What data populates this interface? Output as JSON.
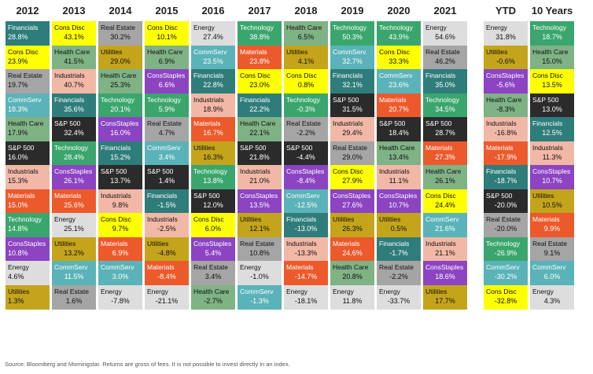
{
  "chart_data": {
    "type": "table",
    "columns": [
      "2012",
      "2013",
      "2014",
      "2015",
      "2016",
      "2017",
      "2018",
      "2019",
      "2020",
      "2021",
      "YTD",
      "10 Years"
    ],
    "sector_colors": {
      "Financials": "#2e7d7b",
      "Cons Disc": "#ffff00",
      "Real Estate": "#a5a5a5",
      "CommServ": "#5ab3b8",
      "Health Care": "#7fb285",
      "S&P 500": "#2b2b2b",
      "Industrials": "#f2b8a7",
      "Materials": "#ec5a2c",
      "Technology": "#3aa66d",
      "ConsStaples": "#8c44c2",
      "Energy": "#dddddd",
      "Utilities": "#c4a41a"
    },
    "rows": [
      [
        [
          "Financials",
          "28.8%"
        ],
        [
          "Cons Disc",
          "43.1%"
        ],
        [
          "Real Estate",
          "30.2%"
        ],
        [
          "Cons Disc",
          "10.1%"
        ],
        [
          "Energy",
          "27.4%"
        ],
        [
          "Technology",
          "38.8%"
        ],
        [
          "Health Care",
          "6.5%"
        ],
        [
          "Technology",
          "50.3%"
        ],
        [
          "Technology",
          "43.9%"
        ],
        [
          "Energy",
          "54.6%"
        ],
        [
          "Energy",
          "31.8%"
        ],
        [
          "Technology",
          "18.7%"
        ]
      ],
      [
        [
          "Cons Disc",
          "23.9%"
        ],
        [
          "Health Care",
          "41.5%"
        ],
        [
          "Utilities",
          "29.0%"
        ],
        [
          "Health Care",
          "6.9%"
        ],
        [
          "CommServ",
          "23.5%"
        ],
        [
          "Materials",
          "23.8%"
        ],
        [
          "Utilities",
          "4.1%"
        ],
        [
          "CommServ",
          "32.7%"
        ],
        [
          "Cons Disc",
          "33.3%"
        ],
        [
          "Real Estate",
          "46.2%"
        ],
        [
          "Utilities",
          "-0.6%"
        ],
        [
          "Health Care",
          "15.0%"
        ]
      ],
      [
        [
          "Real Estate",
          "19.7%"
        ],
        [
          "Industrials",
          "40.7%"
        ],
        [
          "Health Care",
          "25.3%"
        ],
        [
          "ConsStaples",
          "6.6%"
        ],
        [
          "Financials",
          "22.8%"
        ],
        [
          "Cons Disc",
          "23.0%"
        ],
        [
          "Cons Disc",
          "0.8%"
        ],
        [
          "Financials",
          "32.1%"
        ],
        [
          "CommServ",
          "23.6%"
        ],
        [
          "Financials",
          "35.0%"
        ],
        [
          "ConsStaples",
          "-5.6%"
        ],
        [
          "Cons Disc",
          "13.5%"
        ]
      ],
      [
        [
          "CommServ",
          "18.3%"
        ],
        [
          "Financials",
          "35.6%"
        ],
        [
          "Technology",
          "20.1%"
        ],
        [
          "Technology",
          "5.9%"
        ],
        [
          "Industrials",
          "18.9%"
        ],
        [
          "Financials",
          "22.2%"
        ],
        [
          "Technology",
          "-0.3%"
        ],
        [
          "S&P 500",
          "31.5%"
        ],
        [
          "Materials",
          "20.7%"
        ],
        [
          "Technology",
          "34.5%"
        ],
        [
          "Health Care",
          "-8.3%"
        ],
        [
          "S&P 500",
          "13.0%"
        ]
      ],
      [
        [
          "Health Care",
          "17.9%"
        ],
        [
          "S&P 500",
          "32.4%"
        ],
        [
          "ConsStaples",
          "16.0%"
        ],
        [
          "Real Estate",
          "4.7%"
        ],
        [
          "Materials",
          "16.7%"
        ],
        [
          "Health Care",
          "22.1%"
        ],
        [
          "Real Estate",
          "-2.2%"
        ],
        [
          "Industrials",
          "29.4%"
        ],
        [
          "S&P 500",
          "18.4%"
        ],
        [
          "S&P 500",
          "28.7%"
        ],
        [
          "Industrials",
          "-16.8%"
        ],
        [
          "Financials",
          "12.5%"
        ]
      ],
      [
        [
          "S&P 500",
          "16.0%"
        ],
        [
          "Technology",
          "28.4%"
        ],
        [
          "Financials",
          "15.2%"
        ],
        [
          "CommServ",
          "3.4%"
        ],
        [
          "Utilities",
          "16.3%"
        ],
        [
          "S&P 500",
          "21.8%"
        ],
        [
          "S&P 500",
          "-4.4%"
        ],
        [
          "Real Estate",
          "29.0%"
        ],
        [
          "Health Care",
          "13.4%"
        ],
        [
          "Materials",
          "27.3%"
        ],
        [
          "Materials",
          "-17.9%"
        ],
        [
          "Industrials",
          "11.3%"
        ]
      ],
      [
        [
          "Industrials",
          "15.3%"
        ],
        [
          "ConsStaples",
          "26.1%"
        ],
        [
          "S&P 500",
          "13.7%"
        ],
        [
          "S&P 500",
          "1.4%"
        ],
        [
          "Technology",
          "13.8%"
        ],
        [
          "Industrials",
          "21.0%"
        ],
        [
          "ConsStaples",
          "-8.4%"
        ],
        [
          "Cons Disc",
          "27.9%"
        ],
        [
          "Industrials",
          "11.1%"
        ],
        [
          "Health Care",
          "26.1%"
        ],
        [
          "Financials",
          "-18.7%"
        ],
        [
          "ConsStaples",
          "10.7%"
        ]
      ],
      [
        [
          "Materials",
          "15.0%"
        ],
        [
          "Materials",
          "25.6%"
        ],
        [
          "Industrials",
          "9.8%"
        ],
        [
          "Financials",
          "-1.5%"
        ],
        [
          "S&P 500",
          "12.0%"
        ],
        [
          "ConsStaples",
          "13.5%"
        ],
        [
          "CommServ",
          "-12.5%"
        ],
        [
          "ConsStaples",
          "27.6%"
        ],
        [
          "ConsStaples",
          "10.7%"
        ],
        [
          "Cons Disc",
          "24.4%"
        ],
        [
          "S&P 500",
          "-20.0%"
        ],
        [
          "Utilities",
          "10.5%"
        ]
      ],
      [
        [
          "Technology",
          "14.8%"
        ],
        [
          "Energy",
          "25.1%"
        ],
        [
          "Cons Disc",
          "9.7%"
        ],
        [
          "Industrials",
          "-2.5%"
        ],
        [
          "Cons Disc",
          "6.0%"
        ],
        [
          "Utilities",
          "12.1%"
        ],
        [
          "Financials",
          "-13.0%"
        ],
        [
          "Utilities",
          "26.3%"
        ],
        [
          "Utilities",
          "0.5%"
        ],
        [
          "CommServ",
          "21.6%"
        ],
        [
          "Real Estate",
          "-20.0%"
        ],
        [
          "Materials",
          "9.9%"
        ]
      ],
      [
        [
          "ConsStaples",
          "10.8%"
        ],
        [
          "Utilities",
          "13.2%"
        ],
        [
          "Materials",
          "6.9%"
        ],
        [
          "Utilities",
          "-4.8%"
        ],
        [
          "ConsStaples",
          "5.4%"
        ],
        [
          "Real Estate",
          "10.8%"
        ],
        [
          "Industrials",
          "-13.3%"
        ],
        [
          "Materials",
          "24.6%"
        ],
        [
          "Financials",
          "-1.7%"
        ],
        [
          "Industrials",
          "21.1%"
        ],
        [
          "Technology",
          "-26.9%"
        ],
        [
          "Real Estate",
          "9.1%"
        ]
      ],
      [
        [
          "Energy",
          "4.6%"
        ],
        [
          "CommServ",
          "11.5%"
        ],
        [
          "CommServ",
          "3.0%"
        ],
        [
          "Materials",
          "-8.4%"
        ],
        [
          "Real Estate",
          "3.4%"
        ],
        [
          "Energy",
          "-1.0%"
        ],
        [
          "Materials",
          "-14.7%"
        ],
        [
          "Health Care",
          "20.8%"
        ],
        [
          "Real Estate",
          "-2.2%"
        ],
        [
          "ConsStaples",
          "18.6%"
        ],
        [
          "CommServ",
          "-30.2%"
        ],
        [
          "CommServ",
          "6.0%"
        ]
      ],
      [
        [
          "Utilities",
          "1.3%"
        ],
        [
          "Real Estate",
          "1.6%"
        ],
        [
          "Energy",
          "-7.8%"
        ],
        [
          "Energy",
          "-21.1%"
        ],
        [
          "Health Care",
          "-2.7%"
        ],
        [
          "CommServ",
          "-1.3%"
        ],
        [
          "Energy",
          "-18.1%"
        ],
        [
          "Energy",
          "11.8%"
        ],
        [
          "Energy",
          "-33.7%"
        ],
        [
          "Utilities",
          "17.7%"
        ],
        [
          "Cons Disc",
          "-32.8%"
        ],
        [
          "Energy",
          "4.3%"
        ]
      ]
    ]
  },
  "footnote": "Source: Bloomberg and Morningstar. Returns are gross of fees. It is not possible to invest directly in an index."
}
